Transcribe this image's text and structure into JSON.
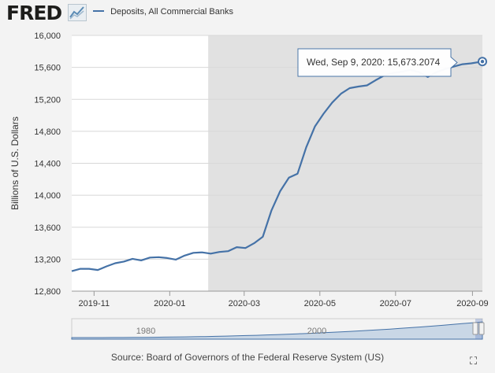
{
  "header": {
    "logo_text": "FRED",
    "logo_icon": "chart-line-icon",
    "legend_label": "Deposits, All Commercial Banks"
  },
  "chart_data": {
    "type": "line",
    "ylabel": "Billions of U.S. Dollars",
    "ylim": [
      12800,
      16000
    ],
    "yticks": [
      12800,
      13200,
      13600,
      14000,
      14400,
      14800,
      15200,
      15600,
      16000
    ],
    "ytick_labels": [
      "12,800",
      "13,200",
      "13,600",
      "14,000",
      "14,400",
      "14,800",
      "15,200",
      "15,600",
      "16,000"
    ],
    "xlim": [
      "2019-10-14",
      "2020-09-09"
    ],
    "xticks": [
      "2019-11-01",
      "2020-01-01",
      "2020-03-01",
      "2020-05-01",
      "2020-07-01",
      "2020-09-01"
    ],
    "xtick_labels": [
      "2019-11",
      "2020-01",
      "2020-03",
      "2020-05",
      "2020-07",
      "2020-09"
    ],
    "recession_shading": {
      "start": "2020-02-01",
      "end": "2020-09-09"
    },
    "grid": true,
    "line_color": "#4572a7",
    "series": [
      {
        "name": "Deposits, All Commercial Banks",
        "x": [
          "2019-10-14",
          "2019-10-21",
          "2019-10-28",
          "2019-11-04",
          "2019-11-11",
          "2019-11-18",
          "2019-11-25",
          "2019-12-02",
          "2019-12-09",
          "2019-12-16",
          "2019-12-23",
          "2019-12-30",
          "2020-01-06",
          "2020-01-13",
          "2020-01-20",
          "2020-01-27",
          "2020-02-03",
          "2020-02-10",
          "2020-02-17",
          "2020-02-24",
          "2020-03-02",
          "2020-03-09",
          "2020-03-16",
          "2020-03-23",
          "2020-03-30",
          "2020-04-06",
          "2020-04-13",
          "2020-04-20",
          "2020-04-27",
          "2020-05-04",
          "2020-05-11",
          "2020-05-18",
          "2020-05-25",
          "2020-06-01",
          "2020-06-08",
          "2020-06-15",
          "2020-06-22",
          "2020-06-29",
          "2020-07-06",
          "2020-07-13",
          "2020-07-20",
          "2020-07-27",
          "2020-08-03",
          "2020-08-10",
          "2020-08-17",
          "2020-08-24",
          "2020-08-31",
          "2020-09-09"
        ],
        "y": [
          13050,
          13080,
          13080,
          13065,
          13110,
          13150,
          13170,
          13205,
          13185,
          13220,
          13225,
          13215,
          13195,
          13245,
          13280,
          13285,
          13270,
          13290,
          13300,
          13350,
          13340,
          13400,
          13480,
          13810,
          14050,
          14220,
          14270,
          14600,
          14860,
          15020,
          15160,
          15270,
          15340,
          15360,
          15375,
          15440,
          15500,
          15530,
          15545,
          15570,
          15540,
          15480,
          15540,
          15580,
          15610,
          15640,
          15650,
          15673.2074
        ]
      }
    ],
    "tooltip": {
      "date_label": "Wed, Sep 9, 2020:",
      "value_label": "15,673.2074"
    }
  },
  "navigator": {
    "labels": [
      "1980",
      "2000"
    ]
  },
  "footer": {
    "source_text": "Source: Board of Governors of the Federal Reserve System (US)",
    "fullscreen_icon": "fullscreen-icon"
  }
}
